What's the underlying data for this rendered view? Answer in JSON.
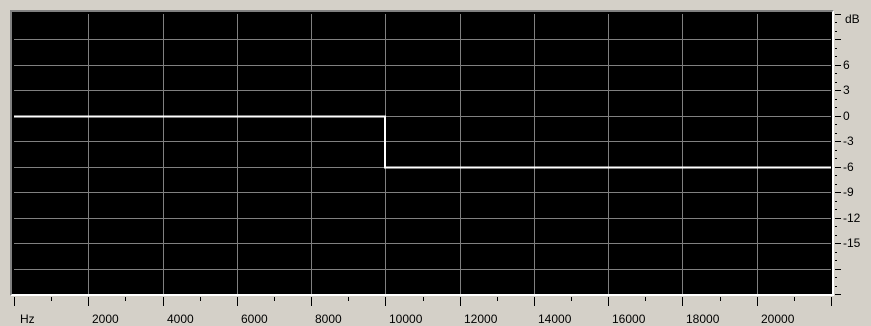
{
  "window": {
    "background": "#d4d0c8"
  },
  "plot": {
    "background": "#000000",
    "grid_color": "#808080",
    "curve_color": "#ffffff",
    "grid": true
  },
  "x_axis": {
    "unit": "Hz",
    "min": 0,
    "max": 22000,
    "tick_labels": [
      "2000",
      "4000",
      "6000",
      "8000",
      "10000",
      "12000",
      "14000",
      "16000",
      "18000",
      "20000"
    ]
  },
  "y_axis": {
    "unit": "dB",
    "min": -21,
    "max": 12,
    "tick_labels": [
      "6",
      "3",
      "0",
      "-3",
      "-6",
      "-9",
      "-12",
      "-15"
    ]
  },
  "chart_data": {
    "type": "line",
    "title": "",
    "xlabel": "Hz",
    "ylabel": "dB",
    "xlim": [
      0,
      22000
    ],
    "ylim": [
      -21,
      12
    ],
    "grid": true,
    "series": [
      {
        "x": [
          0,
          10000,
          10000,
          22000
        ],
        "y": [
          0,
          0,
          -6,
          -6
        ]
      }
    ]
  }
}
